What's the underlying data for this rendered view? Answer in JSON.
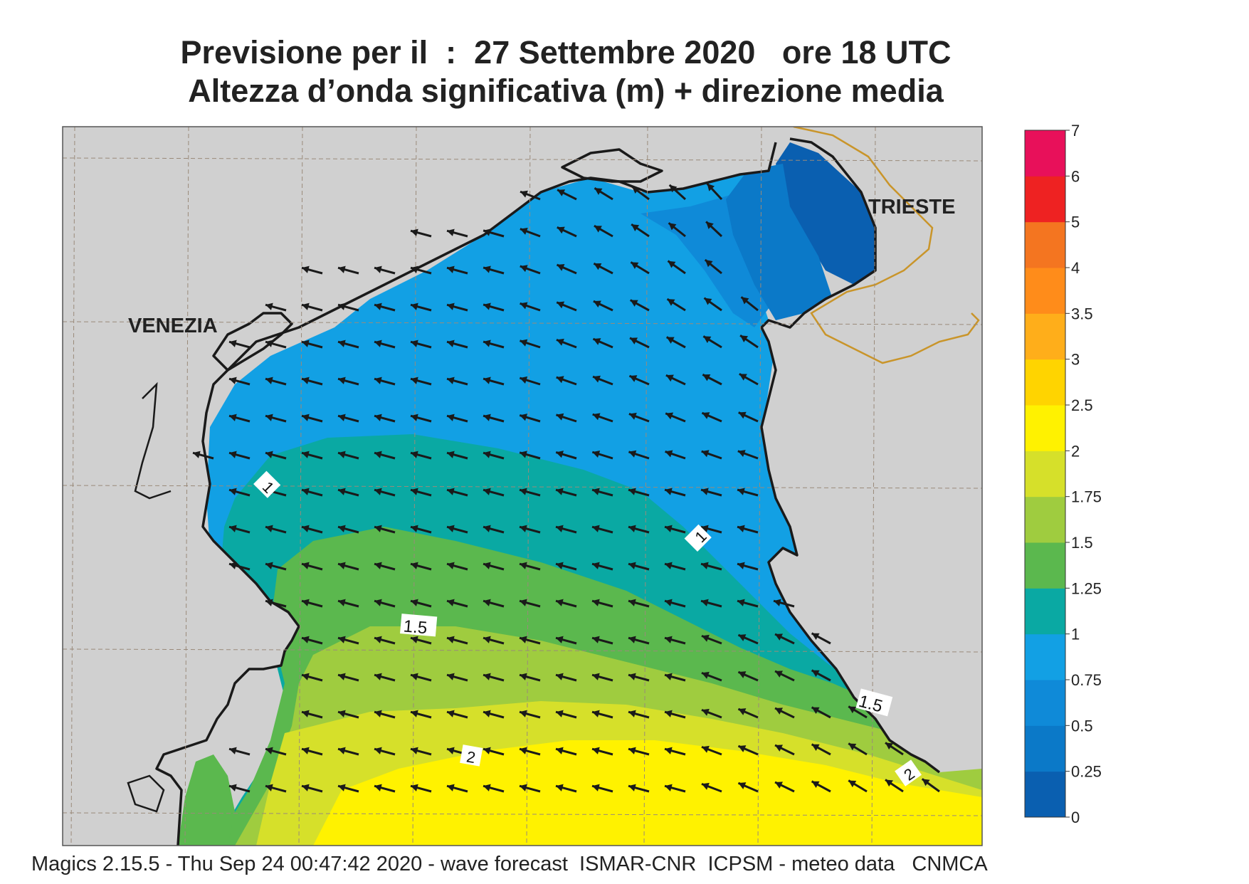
{
  "title": {
    "line1": "Previsione per il  :  27 Settembre 2020   ore 18 UTC",
    "line2": "Altezza d’onda significativa (m) + direzione media"
  },
  "footer": "Magics 2.15.5 - Thu Sep 24 00:47:42 2020 - wave forecast  ISMAR-CNR  ICPSM - meteo data   CNMCA",
  "place_labels": [
    "VENEZIA",
    "TRIESTE"
  ],
  "contour_labels": [
    "1",
    "1",
    "1.5",
    "1.5",
    "2",
    "2"
  ],
  "colorbar": {
    "ticks": [
      "0",
      "0.25",
      "0.5",
      "0.75",
      "1",
      "1.25",
      "1.5",
      "1.75",
      "2",
      "2.5",
      "3",
      "3.5",
      "4",
      "5",
      "6",
      "7"
    ],
    "colors": [
      "#0a5fb0",
      "#0b79c8",
      "#0f8ad8",
      "#12a0e4",
      "#0aa9a3",
      "#5bb84e",
      "#9fcc3f",
      "#d6e02a",
      "#fff200",
      "#ffd400",
      "#ffae1a",
      "#ff8c1a",
      "#f47520",
      "#ee2222",
      "#e8105a"
    ]
  },
  "map_colors": {
    "land": "#d0d0d0",
    "coast": "#1a1a1a",
    "border": "#c9952a",
    "grid": "#9a8a7a",
    "arrow": "#1a1a1a"
  },
  "wave_field": {
    "direction": "mean wave direction arrows pointing toward the west/north-west",
    "bands": [
      {
        "range": "0 - 0.25 m",
        "area": "Gulf of Trieste"
      },
      {
        "range": "0.5 - 1 m",
        "area": "northern Adriatic"
      },
      {
        "range": "1 - 1.5 m",
        "area": "central band"
      },
      {
        "range": "1.5 - 2 m",
        "area": "southern band"
      },
      {
        "range": "2 - 2.5 m",
        "area": "southern edge"
      }
    ]
  }
}
